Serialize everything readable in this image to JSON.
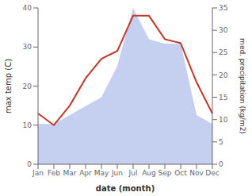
{
  "chart_data": {
    "type": "line",
    "categories": [
      "Jan",
      "Feb",
      "Mar",
      "Apr",
      "May",
      "Jun",
      "Jul",
      "Aug",
      "Sep",
      "Oct",
      "Nov",
      "Dec"
    ],
    "xlabel": "date (month)",
    "ylabel": "max temp (C)",
    "y2label": "med. precipitation (kg/m2)",
    "series": [
      {
        "type": "area",
        "axis": "y2",
        "color": "#c5cff0",
        "values": [
          9.0,
          9.0,
          11.0,
          13.0,
          15.0,
          22.0,
          35.0,
          28.0,
          27.0,
          27.0,
          11.0,
          9.0
        ]
      },
      {
        "type": "line",
        "color": "#c0392b",
        "values": [
          13.0,
          10.0,
          15.0,
          22.0,
          27.0,
          29.0,
          38.0,
          38.0,
          32.0,
          31.0,
          21.0,
          13.0
        ]
      }
    ],
    "ylim": [
      0,
      40
    ],
    "yticks": [
      0,
      10,
      20,
      30,
      40
    ],
    "y2lim": [
      0,
      35
    ],
    "y2ticks": [
      0,
      5,
      10,
      15,
      20,
      25,
      30,
      35
    ],
    "grid": false
  }
}
